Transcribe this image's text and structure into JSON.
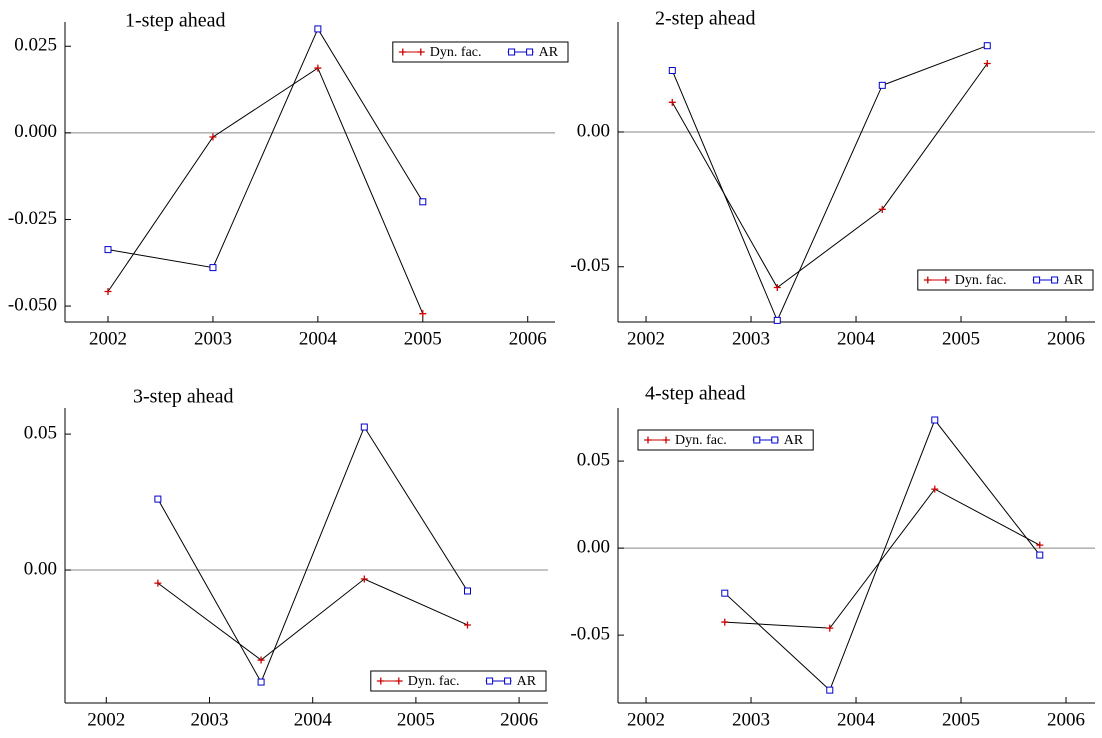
{
  "chart_data": [
    {
      "type": "line",
      "title": "1-step ahead",
      "line_color": "#000000",
      "zero_line": true,
      "legend": "upper right",
      "x": [
        2002,
        2003,
        2004,
        2005
      ],
      "series": [
        {
          "name": "Dyn. fac.",
          "color": "#cc0000",
          "marker": "plus",
          "values": [
            -0.0458,
            -0.0012,
            0.0187,
            -0.0522
          ]
        },
        {
          "name": "AR",
          "color": "#0000cc",
          "marker": "square",
          "values": [
            -0.0337,
            -0.0389,
            0.03,
            -0.0199
          ]
        }
      ],
      "xlim": [
        2001.59,
        2006.26
      ],
      "xticks": [
        2002,
        2003,
        2004,
        2005,
        2006
      ],
      "ylim": [
        -0.0546,
        0.032
      ],
      "yticks": [
        {
          "value": 0.025,
          "label": "0.025"
        },
        {
          "value": 0,
          "label": "0.000"
        },
        {
          "value": -0.025,
          "label": "-0.025"
        },
        {
          "value": -0.05,
          "label": "-0.050"
        }
      ]
    },
    {
      "type": "line",
      "title": "2-step ahead",
      "line_color": "#000000",
      "zero_line": true,
      "legend": "lower right",
      "x": [
        2002.25,
        2003.25,
        2004.25,
        2005.25
      ],
      "series": [
        {
          "name": "Dyn. fac.",
          "color": "#cc0000",
          "marker": "plus",
          "values": [
            0.011,
            -0.0577,
            -0.0287,
            0.0254
          ]
        },
        {
          "name": "AR",
          "color": "#0000cc",
          "marker": "square",
          "values": [
            0.0228,
            -0.0699,
            0.0173,
            0.032
          ]
        }
      ],
      "xlim": [
        2001.733,
        2006.276
      ],
      "xticks": [
        2002,
        2003,
        2004,
        2005,
        2006
      ],
      "ylim": [
        -0.0705,
        0.0408
      ],
      "yticks": [
        {
          "value": 0,
          "label": "0.00"
        },
        {
          "value": -0.05,
          "label": "-0.05"
        }
      ]
    },
    {
      "type": "line",
      "title": "3-step ahead",
      "line_color": "#000000",
      "zero_line": true,
      "legend": "lower right",
      "x": [
        2002.5,
        2003.5,
        2004.5,
        2005.5
      ],
      "series": [
        {
          "name": "Dyn. fac.",
          "color": "#cc0000",
          "marker": "plus",
          "values": [
            -0.0048,
            -0.0331,
            -0.0033,
            -0.0202
          ]
        },
        {
          "name": "AR",
          "color": "#0000cc",
          "marker": "square",
          "values": [
            0.0261,
            -0.0412,
            0.0526,
            -0.0077
          ]
        }
      ],
      "xlim": [
        2001.6,
        2006.28
      ],
      "xticks": [
        2002,
        2003,
        2004,
        2005,
        2006
      ],
      "ylim": [
        -0.0489,
        0.0596
      ],
      "yticks": [
        {
          "value": 0.05,
          "label": "0.05"
        },
        {
          "value": 0,
          "label": "0.00"
        }
      ]
    },
    {
      "type": "line",
      "title": "4-step ahead",
      "line_color": "#000000",
      "zero_line": true,
      "legend": "upper left",
      "x": [
        2002.75,
        2003.75,
        2004.75,
        2005.75
      ],
      "series": [
        {
          "name": "Dyn. fac.",
          "color": "#cc0000",
          "marker": "plus",
          "values": [
            -0.0425,
            -0.046,
            0.0339,
            0.0017
          ]
        },
        {
          "name": "AR",
          "color": "#0000cc",
          "marker": "square",
          "values": [
            -0.0259,
            -0.0816,
            0.0736,
            -0.004
          ]
        }
      ],
      "xlim": [
        2001.733,
        2006.276
      ],
      "xticks": [
        2002,
        2003,
        2004,
        2005,
        2006
      ],
      "ylim": [
        -0.089,
        0.0805
      ],
      "yticks": [
        {
          "value": 0.05,
          "label": "0.05"
        },
        {
          "value": 0,
          "label": "0.00"
        },
        {
          "value": -0.05,
          "label": "-0.05"
        }
      ]
    }
  ]
}
